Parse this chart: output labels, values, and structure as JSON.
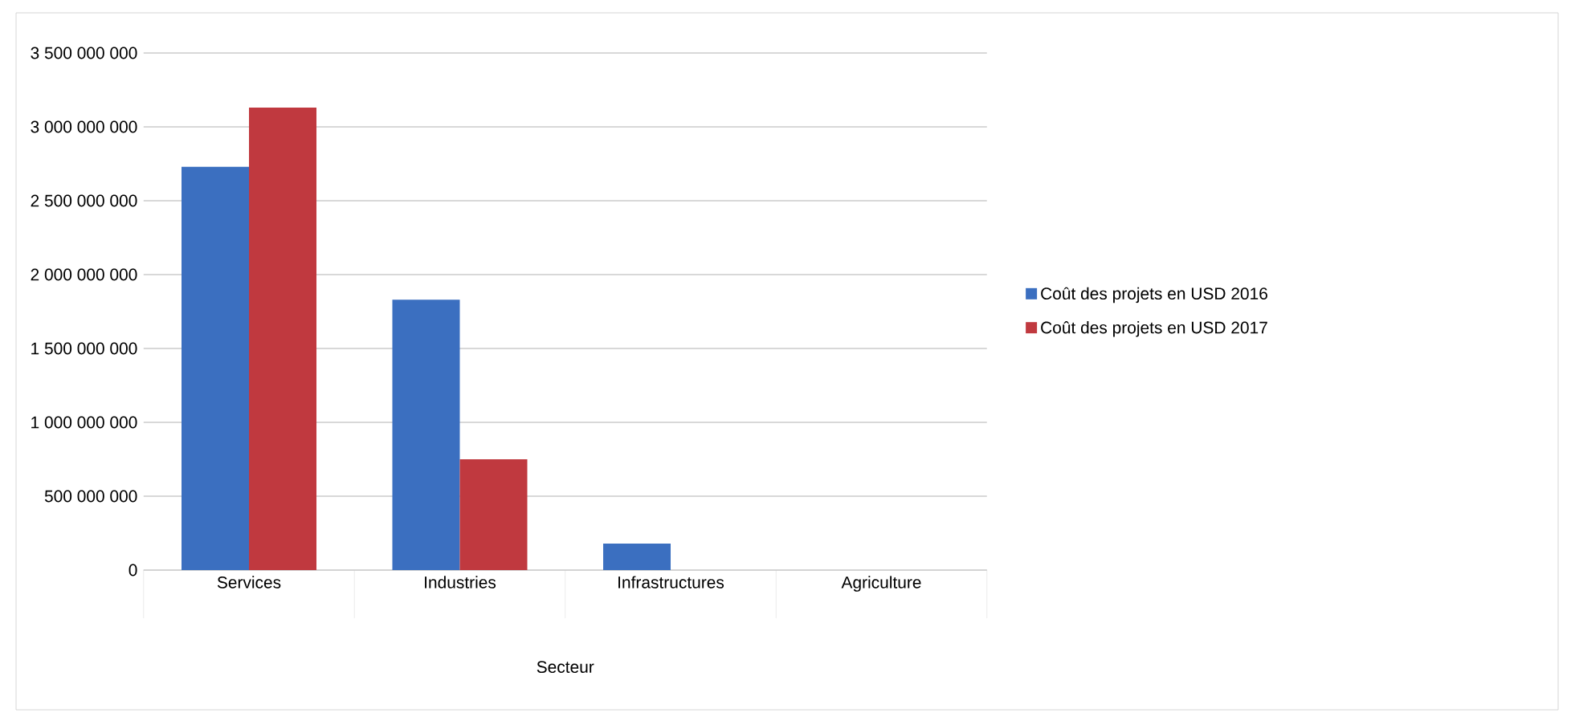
{
  "chart_data": {
    "type": "bar",
    "xlabel": "Secteur",
    "categories": [
      "Services",
      "Industries",
      "Infrastructures",
      "Agriculture"
    ],
    "series": [
      {
        "name": "Coût des projets en USD 2016",
        "color": "#3b6fc0",
        "values": [
          2730000000,
          1830000000,
          180000000,
          0
        ]
      },
      {
        "name": "Coût des projets en USD 2017",
        "color": "#c0393f",
        "values": [
          3130000000,
          750000000,
          0,
          0
        ]
      }
    ],
    "ylim": [
      0,
      3500000000
    ],
    "yticks": [
      {
        "value": 0,
        "label": "0"
      },
      {
        "value": 500000000,
        "label": "500 000 000"
      },
      {
        "value": 1000000000,
        "label": "1 000 000 000"
      },
      {
        "value": 1500000000,
        "label": "1 500 000 000"
      },
      {
        "value": 2000000000,
        "label": "2 000 000 000"
      },
      {
        "value": 2500000000,
        "label": "2 500 000 000"
      },
      {
        "value": 3000000000,
        "label": "3 000 000 000"
      },
      {
        "value": 3500000000,
        "label": "3 500 000 000"
      }
    ],
    "grid": "y",
    "legend": "right"
  }
}
